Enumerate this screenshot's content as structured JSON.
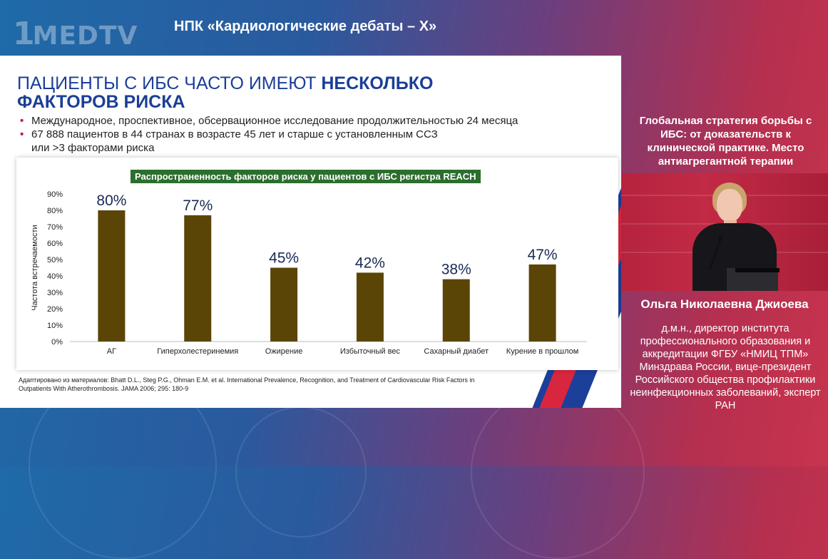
{
  "header": {
    "logo": "MEDTV",
    "logo_prefix": "1",
    "event_title": "НПК «Кардиологические дебаты – Х»"
  },
  "slide": {
    "title_normal": "ПАЦИЕНТЫ С ИБС ЧАСТО ИМЕЮТ ",
    "title_bold": "НЕСКОЛЬКО ФАКТОРОВ РИСКА",
    "bullets": [
      "Международное, проспективное, обсервационное исследование продолжительностью 24 месяца",
      "67 888 пациентов в 44 странах в возрасте 45 лет и старше с установленным ССЗ или >3 факторами риска"
    ],
    "source": "Адаптировано из материалов: Bhatt D.L., Steg P.G., Ohman E.M. et al. International Prevalence, Recognition, and Treatment of Cardiovascular Risk Factors in Outpatients With Atherothrombosis. JAMA 2006; 295: 180-9"
  },
  "chart_data": {
    "type": "bar",
    "title": "Распространенность факторов риска у пациентов с ИБС регистра REACH",
    "xlabel": "",
    "ylabel": "Частота встречаемости",
    "categories": [
      "АГ",
      "Гиперхолестеринемия",
      "Ожирение",
      "Избыточный вес",
      "Сахарный диабет",
      "Курение в прошлом"
    ],
    "values": [
      80,
      77,
      45,
      42,
      38,
      47
    ],
    "value_labels": [
      "80%",
      "77%",
      "45%",
      "42%",
      "38%",
      "47%"
    ],
    "ylim": [
      0,
      90
    ],
    "yticks": [
      "0%",
      "10%",
      "20%",
      "30%",
      "40%",
      "50%",
      "60%",
      "70%",
      "80%",
      "90%"
    ],
    "bar_color": "#5a4507",
    "title_background": "#2c6e2e",
    "grid": false,
    "legend": "none"
  },
  "sidebar": {
    "talk_title": "Глобальная стратегия борьбы с ИБС: от доказательств к клинической практике. Место антиагрегантной терапии",
    "speaker_name": "Ольга Николаевна Джиоева",
    "speaker_desc": "д.м.н., директор института профессионального образования и аккредитации ФГБУ «НМИЦ ТПМ» Минздрава России, вице-президент Российского общества профилактики неинфекционных заболеваний, эксперт РАН"
  },
  "colors": {
    "title_blue": "#1b3f96",
    "accent_red": "#c8203a",
    "bar": "#5a4507"
  }
}
